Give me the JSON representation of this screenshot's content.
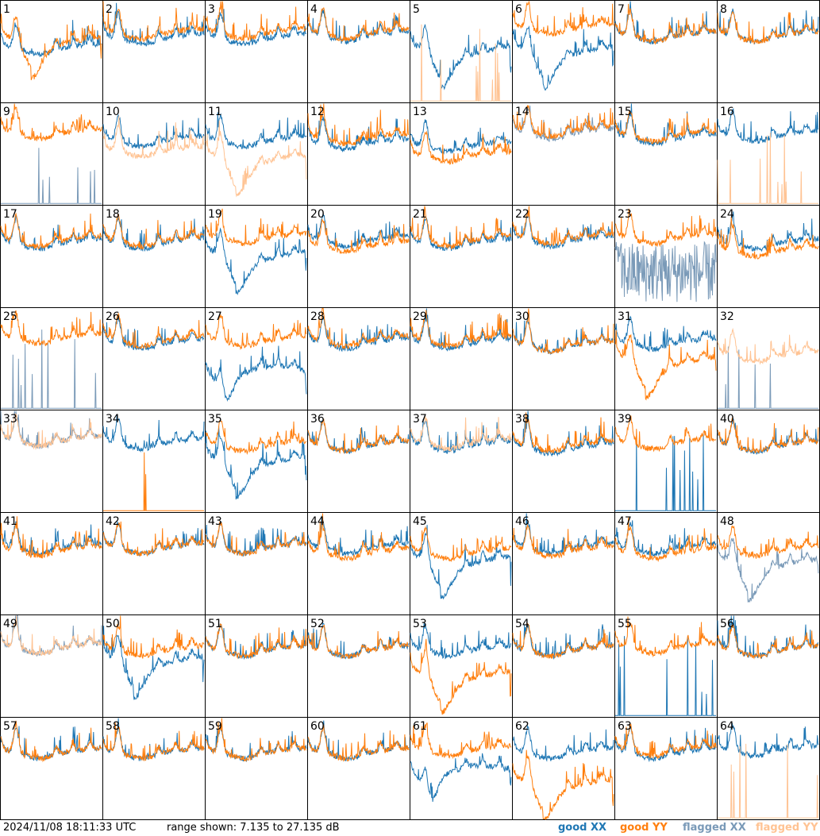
{
  "colors": {
    "good_xx": "#1f77b4",
    "good_yy": "#ff7f0e",
    "flagged_xx": "#7a9ab8",
    "flagged_yy": "#ffc393"
  },
  "footer": {
    "timestamp": "2024/11/08 18:11:33 UTC",
    "range": "range shown: 7.135 to 27.135 dB",
    "legend_good_xx": "good XX",
    "legend_good_yy": "good YY",
    "legend_flagged_xx": "flagged XX",
    "legend_flagged_yy": "flagged YY"
  },
  "chart_data": {
    "type": "line",
    "grid": "8x8 small multiples",
    "x": "channel (unlabeled)",
    "ylim": [
      7.135,
      27.135
    ],
    "y_unit": "dB",
    "panels": [
      {
        "label": "1",
        "xx": "good",
        "yy": "good",
        "xx_level": 18,
        "yy_level": 20,
        "xx_shape": "normal",
        "yy_shape": "dip"
      },
      {
        "label": "2",
        "xx": "good",
        "yy": "good",
        "xx_level": 20,
        "yy_level": 21,
        "xx_shape": "normal",
        "yy_shape": "normal"
      },
      {
        "label": "3",
        "xx": "good",
        "yy": "good",
        "xx_level": 20,
        "yy_level": 21,
        "xx_shape": "normal",
        "yy_shape": "normal"
      },
      {
        "label": "4",
        "xx": "good",
        "yy": "good",
        "xx_level": 20.5,
        "yy_level": 21,
        "xx_shape": "normal",
        "yy_shape": "normal"
      },
      {
        "label": "5",
        "xx": "good",
        "yy": "flagged",
        "xx_level": 18,
        "yy_level": 8,
        "xx_shape": "dip",
        "yy_shape": "spikes"
      },
      {
        "label": "6",
        "xx": "good",
        "yy": "good",
        "xx_level": 18,
        "yy_level": 22,
        "xx_shape": "dip",
        "yy_shape": "normal"
      },
      {
        "label": "7",
        "xx": "good",
        "yy": "good",
        "xx_level": 20.5,
        "yy_level": 20.5,
        "xx_shape": "normal",
        "yy_shape": "normal"
      },
      {
        "label": "8",
        "xx": "good",
        "yy": "good",
        "xx_level": 20.5,
        "yy_level": 20.5,
        "xx_shape": "normal",
        "yy_shape": "normal"
      },
      {
        "label": "9",
        "xx": "flagged",
        "yy": "good",
        "xx_level": 8,
        "yy_level": 21.5,
        "xx_shape": "spikes",
        "yy_shape": "normal"
      },
      {
        "label": "10",
        "xx": "good",
        "yy": "flagged",
        "xx_level": 20,
        "yy_level": 18,
        "xx_shape": "normal",
        "yy_shape": "normal"
      },
      {
        "label": "11",
        "xx": "good",
        "yy": "flagged",
        "xx_level": 20,
        "yy_level": 17,
        "xx_shape": "normal",
        "yy_shape": "dip"
      },
      {
        "label": "12",
        "xx": "good",
        "yy": "good",
        "xx_level": 19.5,
        "yy_level": 20.5,
        "xx_shape": "normal",
        "yy_shape": "normal"
      },
      {
        "label": "13",
        "xx": "good",
        "yy": "good",
        "xx_level": 19,
        "yy_level": 17,
        "xx_shape": "normal",
        "yy_shape": "normal"
      },
      {
        "label": "14",
        "xx": "flagged",
        "yy": "good",
        "xx_level": 21.5,
        "yy_level": 22,
        "xx_shape": "normal",
        "yy_shape": "normal"
      },
      {
        "label": "15",
        "xx": "good",
        "yy": "good",
        "xx_level": 20.5,
        "yy_level": 21,
        "xx_shape": "normal",
        "yy_shape": "normal"
      },
      {
        "label": "16",
        "xx": "good",
        "yy": "flagged",
        "xx_level": 21,
        "yy_level": 8,
        "xx_shape": "normal",
        "yy_shape": "spikes"
      },
      {
        "label": "17",
        "xx": "good",
        "yy": "good",
        "xx_level": 20,
        "yy_level": 20.5,
        "xx_shape": "normal",
        "yy_shape": "normal"
      },
      {
        "label": "18",
        "xx": "good",
        "yy": "good",
        "xx_level": 20,
        "yy_level": 20.5,
        "xx_shape": "normal",
        "yy_shape": "normal"
      },
      {
        "label": "19",
        "xx": "good",
        "yy": "good",
        "xx_level": 18,
        "yy_level": 21,
        "xx_shape": "dip",
        "yy_shape": "normal"
      },
      {
        "label": "20",
        "xx": "good",
        "yy": "good",
        "xx_level": 20.5,
        "yy_level": 19.5,
        "xx_shape": "normal",
        "yy_shape": "normal"
      },
      {
        "label": "21",
        "xx": "good",
        "yy": "good",
        "xx_level": 20,
        "yy_level": 20.5,
        "xx_shape": "normal",
        "yy_shape": "normal"
      },
      {
        "label": "22",
        "xx": "good",
        "yy": "good",
        "xx_level": 20.5,
        "yy_level": 21,
        "xx_shape": "normal",
        "yy_shape": "normal"
      },
      {
        "label": "23",
        "xx": "flagged",
        "yy": "good",
        "xx_level": 14,
        "yy_level": 21,
        "xx_shape": "noisy",
        "yy_shape": "normal"
      },
      {
        "label": "24",
        "xx": "good",
        "yy": "good",
        "xx_level": 20,
        "yy_level": 18.5,
        "xx_shape": "normal",
        "yy_shape": "normal"
      },
      {
        "label": "25",
        "xx": "flagged",
        "yy": "good",
        "xx_level": 8,
        "yy_level": 21.5,
        "xx_shape": "spikes",
        "yy_shape": "normal"
      },
      {
        "label": "26",
        "xx": "good",
        "yy": "good",
        "xx_level": 20.5,
        "yy_level": 21,
        "xx_shape": "normal",
        "yy_shape": "normal"
      },
      {
        "label": "27",
        "xx": "good",
        "yy": "good",
        "xx_level": 14,
        "yy_level": 21,
        "xx_shape": "hump",
        "yy_shape": "normal"
      },
      {
        "label": "28",
        "xx": "good",
        "yy": "good",
        "xx_level": 20.5,
        "yy_level": 21,
        "xx_shape": "normal",
        "yy_shape": "normal"
      },
      {
        "label": "29",
        "xx": "good",
        "yy": "good",
        "xx_level": 20.5,
        "yy_level": 21,
        "xx_shape": "normal",
        "yy_shape": "normal"
      },
      {
        "label": "30",
        "xx": "good",
        "yy": "good",
        "xx_level": 20,
        "yy_level": 20,
        "xx_shape": "normal",
        "yy_shape": "normal"
      },
      {
        "label": "31",
        "xx": "good",
        "yy": "good",
        "xx_level": 20.5,
        "yy_level": 17.5,
        "xx_shape": "normal",
        "yy_shape": "dip"
      },
      {
        "label": "32",
        "xx": "flagged",
        "yy": "flagged",
        "xx_level": 8,
        "yy_level": 18,
        "xx_shape": "spikes",
        "yy_shape": "normal"
      },
      {
        "label": "33",
        "xx": "flagged",
        "yy": "flagged",
        "xx_level": 21.5,
        "yy_level": 21.5,
        "xx_shape": "normal",
        "yy_shape": "normal"
      },
      {
        "label": "34",
        "xx": "good",
        "yy": "good",
        "xx_level": 21,
        "yy_level": 8,
        "xx_shape": "normal",
        "yy_shape": "spikes"
      },
      {
        "label": "35",
        "xx": "good",
        "yy": "good",
        "xx_level": 18,
        "yy_level": 20.5,
        "xx_shape": "dip",
        "yy_shape": "normal"
      },
      {
        "label": "36",
        "xx": "good",
        "yy": "good",
        "xx_level": 20.5,
        "yy_level": 20.5,
        "xx_shape": "normal",
        "yy_shape": "normal"
      },
      {
        "label": "37",
        "xx": "good",
        "yy": "flagged",
        "xx_level": 20.5,
        "yy_level": 21,
        "xx_shape": "normal",
        "yy_shape": "normal"
      },
      {
        "label": "38",
        "xx": "good",
        "yy": "good",
        "xx_level": 20,
        "yy_level": 20.5,
        "xx_shape": "normal",
        "yy_shape": "normal"
      },
      {
        "label": "39",
        "xx": "good",
        "yy": "good",
        "xx_level": 8,
        "yy_level": 21,
        "xx_shape": "spikes",
        "yy_shape": "normal"
      },
      {
        "label": "40",
        "xx": "good",
        "yy": "good",
        "xx_level": 20.5,
        "yy_level": 20.5,
        "xx_shape": "normal",
        "yy_shape": "normal"
      },
      {
        "label": "41",
        "xx": "good",
        "yy": "good",
        "xx_level": 20.5,
        "yy_level": 20,
        "xx_shape": "normal",
        "yy_shape": "normal"
      },
      {
        "label": "42",
        "xx": "good",
        "yy": "good",
        "xx_level": 20.5,
        "yy_level": 20.5,
        "xx_shape": "normal",
        "yy_shape": "normal"
      },
      {
        "label": "43",
        "xx": "good",
        "yy": "good",
        "xx_level": 20.5,
        "yy_level": 20.5,
        "xx_shape": "normal",
        "yy_shape": "normal"
      },
      {
        "label": "44",
        "xx": "good",
        "yy": "good",
        "xx_level": 20.5,
        "yy_level": 19.5,
        "xx_shape": "normal",
        "yy_shape": "normal"
      },
      {
        "label": "45",
        "xx": "good",
        "yy": "good",
        "xx_level": 18.5,
        "yy_level": 19.5,
        "xx_shape": "dip",
        "yy_shape": "normal"
      },
      {
        "label": "46",
        "xx": "good",
        "yy": "good",
        "xx_level": 20.5,
        "yy_level": 20,
        "xx_shape": "normal",
        "yy_shape": "normal"
      },
      {
        "label": "47",
        "xx": "good",
        "yy": "good",
        "xx_level": 20.5,
        "yy_level": 19.5,
        "xx_shape": "normal",
        "yy_shape": "normal"
      },
      {
        "label": "48",
        "xx": "flagged",
        "yy": "good",
        "xx_level": 18,
        "yy_level": 20,
        "xx_shape": "dip",
        "yy_shape": "normal"
      },
      {
        "label": "49",
        "xx": "flagged",
        "yy": "flagged",
        "xx_level": 21,
        "yy_level": 21,
        "xx_shape": "normal",
        "yy_shape": "normal"
      },
      {
        "label": "50",
        "xx": "good",
        "yy": "good",
        "xx_level": 19,
        "yy_level": 20.5,
        "xx_shape": "dip",
        "yy_shape": "normal"
      },
      {
        "label": "51",
        "xx": "good",
        "yy": "good",
        "xx_level": 20.5,
        "yy_level": 20.5,
        "xx_shape": "normal",
        "yy_shape": "normal"
      },
      {
        "label": "52",
        "xx": "good",
        "yy": "good",
        "xx_level": 20.5,
        "yy_level": 20.5,
        "xx_shape": "normal",
        "yy_shape": "normal"
      },
      {
        "label": "53",
        "xx": "good",
        "yy": "good",
        "xx_level": 20.5,
        "yy_level": 16,
        "xx_shape": "normal",
        "yy_shape": "dip"
      },
      {
        "label": "54",
        "xx": "good",
        "yy": "good",
        "xx_level": 20.5,
        "yy_level": 20.5,
        "xx_shape": "normal",
        "yy_shape": "normal"
      },
      {
        "label": "55",
        "xx": "good",
        "yy": "good",
        "xx_level": 8,
        "yy_level": 21,
        "xx_shape": "spikes",
        "yy_shape": "normal"
      },
      {
        "label": "56",
        "xx": "good",
        "yy": "good",
        "xx_level": 20.5,
        "yy_level": 20.5,
        "xx_shape": "normal",
        "yy_shape": "normal"
      },
      {
        "label": "57",
        "xx": "good",
        "yy": "good",
        "xx_level": 20.5,
        "yy_level": 20.5,
        "xx_shape": "normal",
        "yy_shape": "normal"
      },
      {
        "label": "58",
        "xx": "good",
        "yy": "good",
        "xx_level": 20.5,
        "yy_level": 20.5,
        "xx_shape": "normal",
        "yy_shape": "normal"
      },
      {
        "label": "59",
        "xx": "good",
        "yy": "good",
        "xx_level": 20.5,
        "yy_level": 20.5,
        "xx_shape": "normal",
        "yy_shape": "normal"
      },
      {
        "label": "60",
        "xx": "good",
        "yy": "good",
        "xx_level": 20.5,
        "yy_level": 20.5,
        "xx_shape": "normal",
        "yy_shape": "normal"
      },
      {
        "label": "61",
        "xx": "good",
        "yy": "good",
        "xx_level": 16,
        "yy_level": 21,
        "xx_shape": "hump",
        "yy_shape": "normal"
      },
      {
        "label": "62",
        "xx": "good",
        "yy": "good",
        "xx_level": 20.5,
        "yy_level": 15,
        "xx_shape": "normal",
        "yy_shape": "dip"
      },
      {
        "label": "63",
        "xx": "good",
        "yy": "good",
        "xx_level": 20.5,
        "yy_level": 21,
        "xx_shape": "normal",
        "yy_shape": "normal"
      },
      {
        "label": "64",
        "xx": "good",
        "yy": "flagged",
        "xx_level": 21,
        "yy_level": 8,
        "xx_shape": "normal",
        "yy_shape": "spikes"
      }
    ]
  }
}
